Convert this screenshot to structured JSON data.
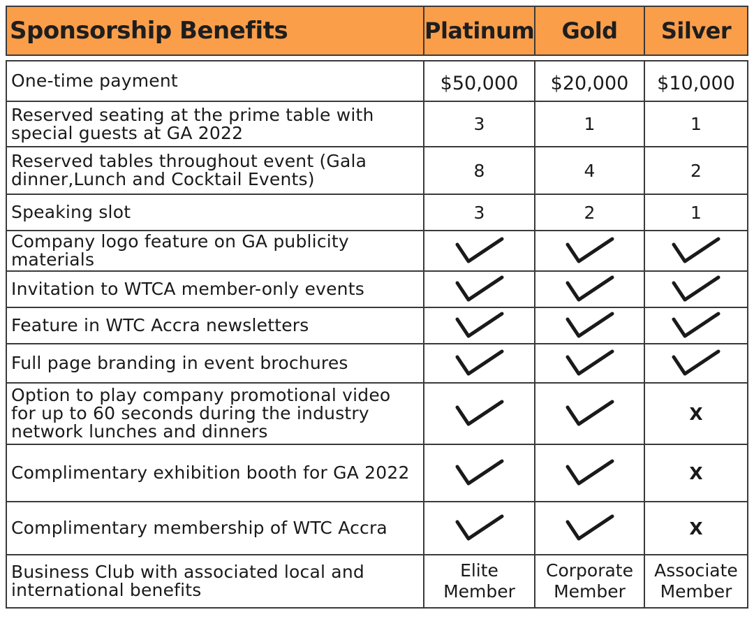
{
  "header": {
    "title": "Sponsorship Benefits",
    "tiers": [
      "Platinum",
      "Gold",
      "Silver"
    ]
  },
  "accent_color": "#fb9e4a",
  "rows": [
    {
      "label": "One-time payment",
      "values": [
        "$50,000",
        "$20,000",
        "$10,000"
      ],
      "kind": "payment"
    },
    {
      "label": "Reserved seating at the prime table with special guests at GA 2022",
      "values": [
        "3",
        "1",
        "1"
      ],
      "kind": "number"
    },
    {
      "label": "Reserved tables throughout event (Gala dinner,Lunch and Cocktail Events)",
      "values": [
        "8",
        "4",
        "2"
      ],
      "kind": "number"
    },
    {
      "label": "Speaking slot",
      "values": [
        "3",
        "2",
        "1"
      ],
      "kind": "number"
    },
    {
      "label": "Company logo feature on GA publicity materials",
      "values": [
        "check",
        "check",
        "check"
      ],
      "kind": "mark"
    },
    {
      "label": "Invitation to WTCA member-only events",
      "values": [
        "check",
        "check",
        "check"
      ],
      "kind": "mark"
    },
    {
      "label": "Feature in WTC Accra newsletters",
      "values": [
        "check",
        "check",
        "check"
      ],
      "kind": "mark"
    },
    {
      "label": "Full page branding in event brochures",
      "values": [
        "check",
        "check",
        "check"
      ],
      "kind": "mark"
    },
    {
      "label": "Option to play company promotional video for up to 60 seconds during the industry network lunches and dinners",
      "values": [
        "check",
        "check",
        "X"
      ],
      "kind": "mark"
    },
    {
      "label": "Complimentary exhibition booth for GA 2022",
      "values": [
        "check",
        "check",
        "X"
      ],
      "kind": "mark"
    },
    {
      "label": "Complimentary membership of WTC Accra",
      "values": [
        "check",
        "check",
        "X"
      ],
      "kind": "mark"
    },
    {
      "label": "Business Club with associated local and international benefits",
      "values": [
        "Elite Member",
        "Corporate Member",
        "Associate Member"
      ],
      "kind": "member"
    }
  ]
}
